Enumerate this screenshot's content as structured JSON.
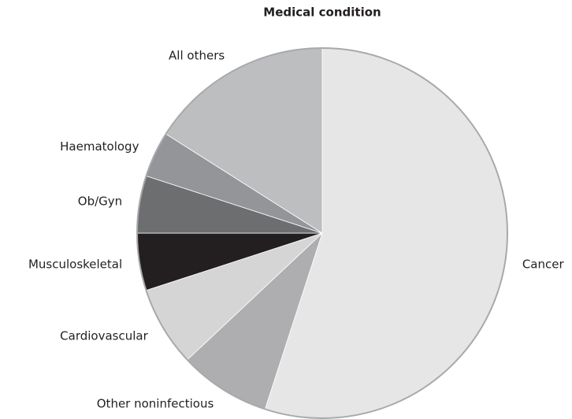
{
  "chart_data": {
    "type": "pie",
    "title": "Medical condition",
    "categories": [
      "Cancer",
      "Other noninfectious",
      "Cardiovascular",
      "Musculoskeletal",
      "Ob/Gyn",
      "Haematology",
      "All others"
    ],
    "values": [
      55,
      8,
      7,
      5,
      5,
      4,
      16
    ],
    "colors": [
      "#e6e6e7",
      "#aeaeb0",
      "#d5d5d6",
      "#231f20",
      "#6d6e70",
      "#939598",
      "#bcbec0"
    ],
    "start_angle": 0,
    "direction": "clockwise"
  }
}
